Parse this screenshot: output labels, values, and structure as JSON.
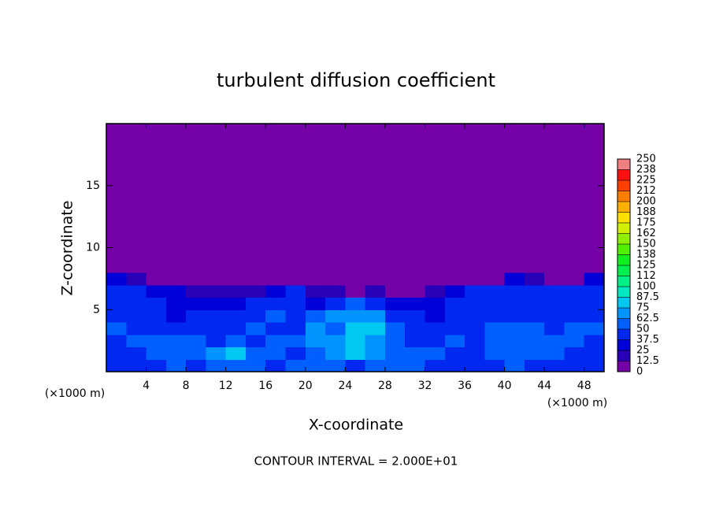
{
  "chart_data": {
    "type": "heatmap",
    "title": "turbulent diffusion coefficient",
    "x_label": "X-coordinate",
    "y_label": "Z-coordinate",
    "x_unit": "(×1000 m)",
    "footer": "CONTOUR INTERVAL = 2.000E+01",
    "xlim": [
      0,
      50
    ],
    "ylim": [
      0,
      20
    ],
    "xticks": [
      4,
      8,
      12,
      16,
      20,
      24,
      28,
      32,
      36,
      40,
      44,
      48
    ],
    "yticks": [
      5,
      10,
      15
    ],
    "x_bins": [
      0,
      2,
      4,
      6,
      8,
      10,
      12,
      14,
      16,
      18,
      20,
      22,
      24,
      26,
      28,
      30,
      32,
      34,
      36,
      38,
      40,
      42,
      44,
      46,
      48,
      50
    ],
    "y_bins": [
      0,
      1,
      2,
      3,
      4,
      5,
      6,
      7,
      8,
      20
    ],
    "z": [
      [
        45,
        45,
        45,
        50,
        45,
        50,
        55,
        60,
        45,
        50,
        55,
        60,
        45,
        50,
        55,
        50,
        45,
        40,
        45,
        45,
        50,
        45,
        45,
        45,
        45
      ],
      [
        40,
        45,
        50,
        55,
        60,
        70,
        75,
        55,
        50,
        45,
        60,
        70,
        75,
        65,
        50,
        55,
        50,
        45,
        40,
        50,
        55,
        60,
        50,
        45,
        45
      ],
      [
        45,
        50,
        55,
        55,
        50,
        45,
        50,
        45,
        50,
        55,
        65,
        70,
        80,
        70,
        55,
        45,
        45,
        50,
        45,
        55,
        60,
        55,
        50,
        50,
        45
      ],
      [
        50,
        45,
        40,
        45,
        40,
        40,
        45,
        50,
        45,
        45,
        70,
        60,
        80,
        75,
        50,
        40,
        40,
        45,
        45,
        50,
        55,
        50,
        45,
        50,
        50
      ],
      [
        45,
        45,
        40,
        35,
        45,
        40,
        40,
        45,
        50,
        45,
        60,
        65,
        70,
        65,
        45,
        40,
        35,
        40,
        40,
        45,
        45,
        45,
        40,
        45,
        45
      ],
      [
        40,
        40,
        40,
        35,
        30,
        35,
        30,
        40,
        45,
        40,
        30,
        45,
        50,
        40,
        30,
        25,
        35,
        40,
        40,
        40,
        40,
        40,
        40,
        40,
        40
      ],
      [
        40,
        40,
        35,
        30,
        20,
        15,
        20,
        15,
        25,
        40,
        20,
        15,
        10,
        15,
        10,
        10,
        20,
        30,
        40,
        40,
        40,
        40,
        40,
        40,
        40
      ],
      [
        35,
        20,
        0,
        0,
        0,
        0,
        0,
        0,
        0,
        0,
        0,
        0,
        0,
        0,
        0,
        0,
        0,
        0,
        0,
        0,
        30,
        20,
        0,
        0,
        25
      ],
      [
        0,
        0,
        0,
        0,
        0,
        0,
        0,
        0,
        0,
        0,
        0,
        0,
        0,
        0,
        0,
        0,
        0,
        0,
        0,
        0,
        0,
        0,
        0,
        0,
        0
      ]
    ],
    "clim": [
      0,
      250
    ],
    "cticks": [
      0,
      12.5,
      25,
      37.5,
      50,
      62.5,
      75,
      87.5,
      100,
      {
        "value": 112.5,
        "label": "112"
      },
      125,
      {
        "value": 137.5,
        "label": "138"
      },
      150,
      {
        "value": 162.5,
        "label": "162"
      },
      175,
      {
        "value": 187.5,
        "label": "188"
      },
      200,
      {
        "value": 212.5,
        "label": "212"
      },
      225,
      {
        "value": 237.5,
        "label": "238"
      },
      250
    ],
    "colors": [
      "#7400a8",
      "#2800b8",
      "#0000d8",
      "#0028f0",
      "#0060ff",
      "#0094ff",
      "#00c8f0",
      "#00e8c0",
      "#00f088",
      "#00f050",
      "#10f020",
      "#50f000",
      "#90f000",
      "#d0f000",
      "#ffe000",
      "#ffb000",
      "#ff8000",
      "#ff4000",
      "#ff1010",
      "#f08080"
    ]
  }
}
